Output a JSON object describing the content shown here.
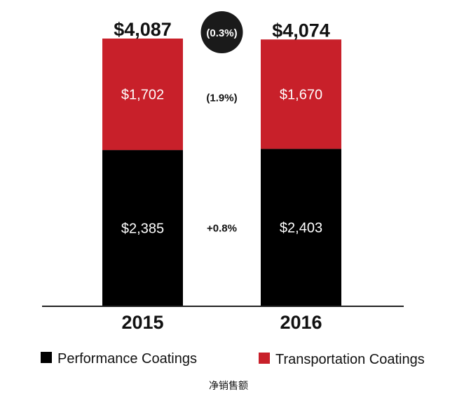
{
  "chart_data": {
    "type": "bar",
    "stacked": true,
    "categories": [
      "2015",
      "2016"
    ],
    "series": [
      {
        "name": "Performance Coatings",
        "color": "#000000",
        "values": [
          2385,
          2403
        ],
        "labels": [
          "$2,385",
          "$2,403"
        ]
      },
      {
        "name": "Transportation Coatings",
        "color": "#c8202a",
        "values": [
          1702,
          1670
        ],
        "labels": [
          "$1,702",
          "$1,670"
        ]
      }
    ],
    "totals": [
      "$4,087",
      "$4,074"
    ],
    "changes": {
      "total": "(0.3%)",
      "series": [
        "+0.8%",
        "(1.9%)"
      ]
    },
    "legend_position": "bottom",
    "grid": false
  },
  "caption": "净销售额"
}
